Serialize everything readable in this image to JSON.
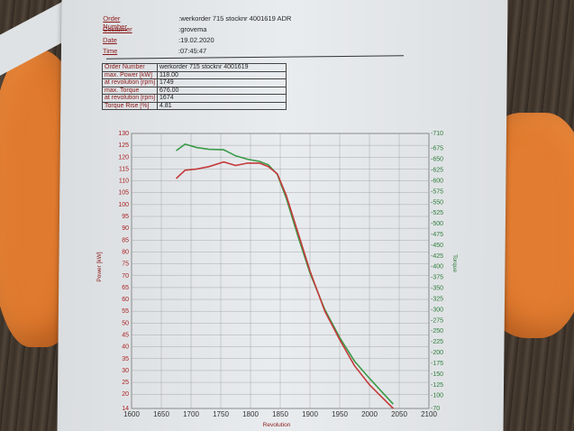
{
  "header": {
    "rows": [
      {
        "key": "Order Number",
        "value": ":werkorder 715 stocknr 4001619    ADR"
      },
      {
        "key": "Costumer",
        "value": ":grovema"
      },
      {
        "key": "Date",
        "value": ":19.02.2020"
      },
      {
        "key": "Time",
        "value": ":07:45:47"
      }
    ]
  },
  "spec_table": {
    "rows": [
      {
        "key": "Order Number",
        "value": "werkorder 715 stocknr 4001619"
      },
      {
        "key": "max. Power [kW]",
        "value": "118.00"
      },
      {
        "key": "at revolution [rpm]",
        "value": "1749"
      },
      {
        "key": "max. Torque",
        "value": "676.00"
      },
      {
        "key": "at revolution [rpm]",
        "value": "1674"
      },
      {
        "key": "Torque Rise [%]",
        "value": "4.81"
      }
    ]
  },
  "colors": {
    "power": "#c43b3b",
    "torque": "#3a9a48",
    "grid": "#999999"
  },
  "chart_data": {
    "type": "line",
    "xlabel": "Revolution",
    "ylabel": "Power [kW]",
    "y2label": "Torque",
    "xlim": [
      1600,
      2100
    ],
    "ylim": [
      14,
      130
    ],
    "y2lim": [
      70,
      710
    ],
    "x_ticks": [
      "1600",
      "1650",
      "1700",
      "1750",
      "1800",
      "1850",
      "1900",
      "1950",
      "2000",
      "2050",
      "2100"
    ],
    "y_ticks": [
      "130",
      "125",
      "120",
      "115",
      "110",
      "105",
      "100",
      "95",
      "90",
      "85",
      "80",
      "75",
      "70",
      "65",
      "60",
      "55",
      "50",
      "45",
      "40",
      "35",
      "30",
      "25",
      "20",
      "14"
    ],
    "y2_ticks": [
      "710",
      "675",
      "650",
      "625",
      "600",
      "575",
      "550",
      "525",
      "500",
      "475",
      "450",
      "425",
      "400",
      "375",
      "350",
      "325",
      "300",
      "275",
      "250",
      "225",
      "200",
      "175",
      "150",
      "125",
      "100",
      "70"
    ],
    "series": [
      {
        "name": "Power",
        "axis": "left",
        "x": [
          1675,
          1690,
          1710,
          1730,
          1755,
          1775,
          1795,
          1815,
          1830,
          1845,
          1860,
          1880,
          1900,
          1925,
          1950,
          1975,
          2000,
          2020,
          2040
        ],
        "y": [
          111,
          114.5,
          115,
          116,
          118,
          116.5,
          117.5,
          117.5,
          116,
          113,
          104,
          88,
          72,
          55,
          43,
          32,
          24,
          19,
          14
        ]
      },
      {
        "name": "Torque",
        "axis": "right",
        "x": [
          1675,
          1690,
          1710,
          1730,
          1755,
          1775,
          1795,
          1815,
          1830,
          1845,
          1860,
          1880,
          1900,
          1925,
          1950,
          1975,
          2000,
          2020,
          2040
        ],
        "y": [
          670,
          685,
          677,
          673,
          672,
          658,
          650,
          645,
          637,
          615,
          560,
          470,
          385,
          300,
          235,
          180,
          140,
          110,
          80
        ]
      }
    ]
  }
}
